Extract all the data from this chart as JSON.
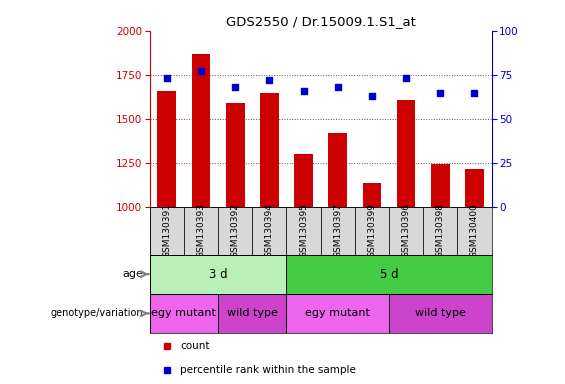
{
  "title": "GDS2550 / Dr.15009.1.S1_at",
  "samples": [
    "GSM130391",
    "GSM130393",
    "GSM130392",
    "GSM130394",
    "GSM130395",
    "GSM130397",
    "GSM130399",
    "GSM130396",
    "GSM130398",
    "GSM130400"
  ],
  "counts": [
    1660,
    1870,
    1590,
    1650,
    1300,
    1420,
    1140,
    1610,
    1245,
    1215
  ],
  "percentile_ranks": [
    73,
    77,
    68,
    72,
    66,
    68,
    63,
    73,
    65,
    65
  ],
  "ylim_left": [
    1000,
    2000
  ],
  "ylim_right": [
    0,
    100
  ],
  "yticks_left": [
    1000,
    1250,
    1500,
    1750,
    2000
  ],
  "yticks_right": [
    0,
    25,
    50,
    75,
    100
  ],
  "age_groups": [
    {
      "label": "3 d",
      "start": 0,
      "end": 4,
      "color": "#b8f0b8"
    },
    {
      "label": "5 d",
      "start": 4,
      "end": 10,
      "color": "#44cc44"
    }
  ],
  "genotype_groups": [
    {
      "label": "egy mutant",
      "start": 0,
      "end": 2,
      "color": "#ee66ee"
    },
    {
      "label": "wild type",
      "start": 2,
      "end": 4,
      "color": "#cc44cc"
    },
    {
      "label": "egy mutant",
      "start": 4,
      "end": 7,
      "color": "#ee66ee"
    },
    {
      "label": "wild type",
      "start": 7,
      "end": 10,
      "color": "#cc44cc"
    }
  ],
  "bar_color": "#cc0000",
  "dot_color": "#0000cc",
  "grid_color": "#555555",
  "left_axis_color": "#cc0000",
  "right_axis_color": "#0000cc",
  "chart_bg": "#ffffff",
  "sample_bg": "#d8d8d8",
  "height_ratios": [
    4.5,
    1.2,
    1.0,
    1.0,
    1.2
  ]
}
